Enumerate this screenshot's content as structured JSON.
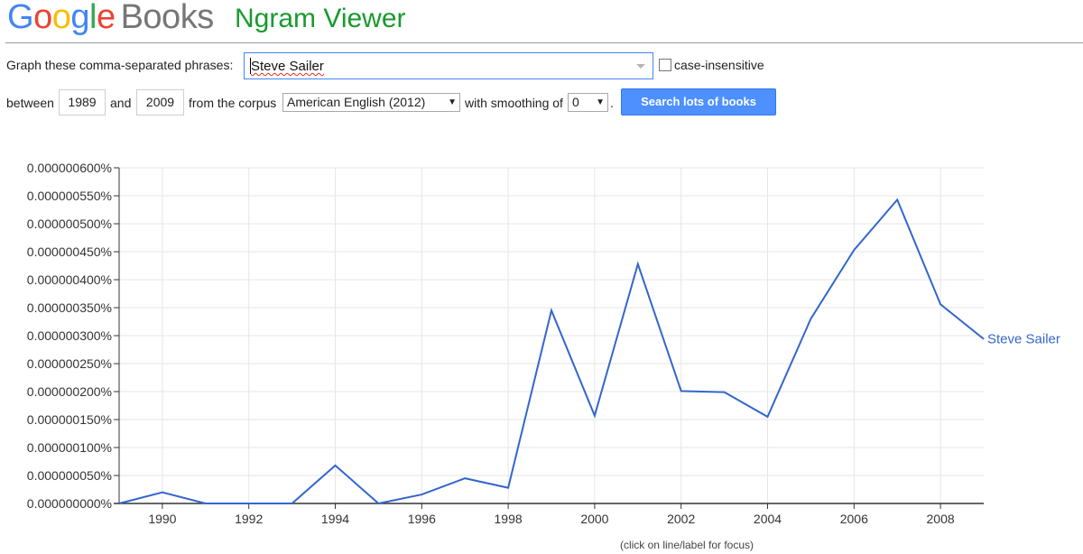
{
  "header": {
    "logo_letters": [
      {
        "ch": "G",
        "color": "#4285f4"
      },
      {
        "ch": "o",
        "color": "#ea4335"
      },
      {
        "ch": "o",
        "color": "#fbbc05"
      },
      {
        "ch": "g",
        "color": "#4285f4"
      },
      {
        "ch": "l",
        "color": "#34a853"
      },
      {
        "ch": "e",
        "color": "#ea4335"
      }
    ],
    "books_word": "Books",
    "app_title": "Ngram Viewer"
  },
  "form": {
    "phrase_label": "Graph these comma-separated phrases:",
    "phrase_value": "Steve Sailer",
    "case_insensitive_label": "case-insensitive",
    "between_label": "between",
    "year_start": "1989",
    "and_label": "and",
    "year_end": "2009",
    "corpus_label": "from the corpus",
    "corpus_value": "American English (2012)",
    "smoothing_label": "with smoothing of",
    "smoothing_value": "0",
    "period": ".",
    "search_button": "Search lots of books",
    "dropdown_arrow": "▼"
  },
  "chart_data": {
    "type": "line",
    "x": [
      1989,
      1990,
      1991,
      1992,
      1993,
      1994,
      1995,
      1996,
      1997,
      1998,
      1999,
      2000,
      2001,
      2002,
      2003,
      2004,
      2005,
      2006,
      2007,
      2008,
      2009
    ],
    "series": [
      {
        "name": "Steve Sailer",
        "color": "#3366cc",
        "values": [
          0.0,
          2e-08,
          0.0,
          0.0,
          0.0,
          6.8e-08,
          0.0,
          1.6e-08,
          4.5e-08,
          2.8e-08,
          3.45e-07,
          1.57e-07,
          4.28e-07,
          2.01e-07,
          1.99e-07,
          1.55e-07,
          3.3e-07,
          4.53e-07,
          5.43e-07,
          3.56e-07,
          2.94e-07
        ]
      }
    ],
    "xticks": [
      "1990",
      "1992",
      "1994",
      "1996",
      "1998",
      "2000",
      "2002",
      "2004",
      "2006",
      "2008"
    ],
    "yticks": [
      "0.000000000%",
      "0.000000050%",
      "0.000000100%",
      "0.000000150%",
      "0.000000200%",
      "0.000000250%",
      "0.000000300%",
      "0.000000350%",
      "0.000000400%",
      "0.000000450%",
      "0.000000500%",
      "0.000000550%",
      "0.000000600%"
    ],
    "ylim": [
      0,
      6e-07
    ],
    "xlim": [
      1989,
      2009
    ],
    "grid": true,
    "footnote": "(click on line/label for focus)"
  }
}
